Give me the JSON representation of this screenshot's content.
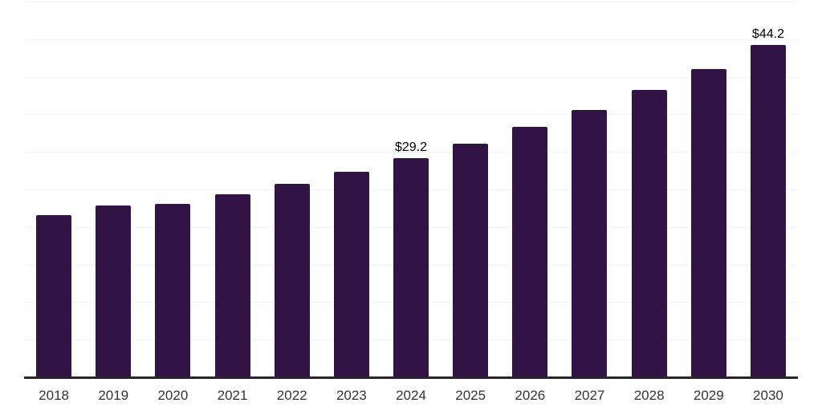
{
  "chart_data": {
    "type": "bar",
    "title": "",
    "xlabel": "",
    "ylabel": "",
    "categories": [
      "2018",
      "2019",
      "2020",
      "2021",
      "2022",
      "2023",
      "2024",
      "2025",
      "2026",
      "2027",
      "2028",
      "2029",
      "2030"
    ],
    "values": [
      21.6,
      22.9,
      23.1,
      24.4,
      25.7,
      27.3,
      29.2,
      31.1,
      33.3,
      35.6,
      38.3,
      41.0,
      44.2
    ],
    "data_labels": [
      "",
      "",
      "",
      "",
      "",
      "",
      "$29.2",
      "",
      "",
      "",
      "",
      "",
      "$44.2"
    ],
    "ylim": [
      0,
      50
    ],
    "gridline_step": 5,
    "grid": true,
    "legend": false,
    "colors": {
      "bar": "#321345",
      "background": "#ffffff",
      "gridline": "#f2f2f2",
      "axis_line": "#262626",
      "tick_label": "#333333",
      "data_label": "#000000"
    }
  }
}
